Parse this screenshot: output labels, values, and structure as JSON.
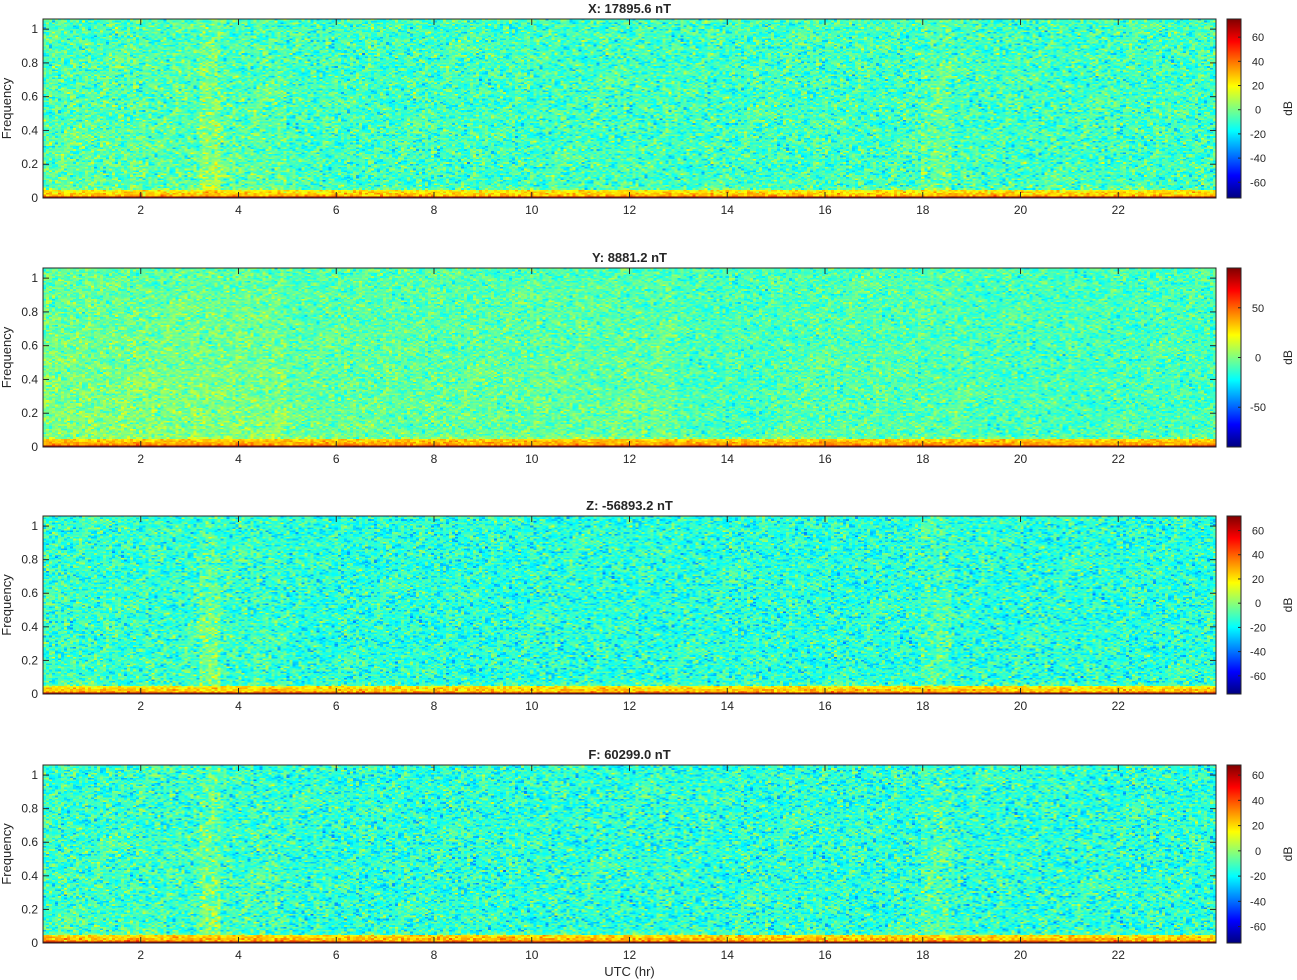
{
  "chart_data": [
    {
      "type": "heatmap",
      "title": "X: 17895.6 nT",
      "ylabel": "Frequency",
      "xlabel": "",
      "xlim": [
        0,
        24
      ],
      "ylim": [
        0,
        1.06
      ],
      "xticks": [
        2,
        4,
        6,
        8,
        10,
        12,
        14,
        16,
        18,
        20,
        22
      ],
      "yticks": [
        0,
        0.2,
        0.4,
        0.6,
        0.8,
        1
      ],
      "colorbar": {
        "label": "dB",
        "clim": [
          -73,
          75
        ],
        "ticks": [
          60,
          40,
          20,
          0,
          -20,
          -40,
          -60
        ]
      },
      "background_db": -8,
      "low_freq_band_db": 30,
      "dc_line_db": 70,
      "enhanced_regions": [
        {
          "x": [
            0,
            5
          ],
          "db_offset": 4
        },
        {
          "x": [
            3.2,
            3.6
          ],
          "db_offset": 10
        },
        {
          "x": [
            18,
            18.6
          ],
          "db_offset": 6
        }
      ]
    },
    {
      "type": "heatmap",
      "title": "Y: 8881.2 nT",
      "ylabel": "Frequency",
      "xlabel": "",
      "xlim": [
        0,
        24
      ],
      "ylim": [
        0,
        1.06
      ],
      "xticks": [
        2,
        4,
        6,
        8,
        10,
        12,
        14,
        16,
        18,
        20,
        22
      ],
      "yticks": [
        0,
        0.2,
        0.4,
        0.6,
        0.8,
        1
      ],
      "colorbar": {
        "label": "dB",
        "clim": [
          -90,
          90
        ],
        "ticks": [
          50,
          0,
          -50
        ]
      },
      "background_db": -10,
      "low_freq_band_db": 40,
      "dc_line_db": 85,
      "enhanced_regions": [
        {
          "x": [
            0,
            5
          ],
          "db_offset": 12
        },
        {
          "x": [
            5,
            13
          ],
          "db_offset": 6
        },
        {
          "x": [
            15,
            19
          ],
          "db_offset": 3
        }
      ]
    },
    {
      "type": "heatmap",
      "title": "Z: -56893.2 nT",
      "ylabel": "Frequency",
      "xlabel": "",
      "xlim": [
        0,
        24
      ],
      "ylim": [
        0,
        1.06
      ],
      "xticks": [
        2,
        4,
        6,
        8,
        10,
        12,
        14,
        16,
        18,
        20,
        22
      ],
      "yticks": [
        0,
        0.2,
        0.4,
        0.6,
        0.8,
        1
      ],
      "colorbar": {
        "label": "dB",
        "clim": [
          -75,
          72
        ],
        "ticks": [
          60,
          40,
          20,
          0,
          -20,
          -40,
          -60
        ]
      },
      "background_db": -14,
      "low_freq_band_db": 28,
      "dc_line_db": 68,
      "enhanced_regions": [
        {
          "x": [
            0,
            5
          ],
          "db_offset": 3
        },
        {
          "x": [
            3.2,
            3.6
          ],
          "db_offset": 10
        },
        {
          "x": [
            18,
            18.6
          ],
          "db_offset": 6
        }
      ]
    },
    {
      "type": "heatmap",
      "title": "F: 60299.0 nT",
      "ylabel": "Frequency",
      "xlabel": "UTC (hr)",
      "xlim": [
        0,
        24
      ],
      "ylim": [
        0,
        1.06
      ],
      "xticks": [
        2,
        4,
        6,
        8,
        10,
        12,
        14,
        16,
        18,
        20,
        22
      ],
      "yticks": [
        0,
        0.2,
        0.4,
        0.6,
        0.8,
        1
      ],
      "colorbar": {
        "label": "dB",
        "clim": [
          -73,
          68
        ],
        "ticks": [
          60,
          40,
          20,
          0,
          -20,
          -40,
          -60
        ]
      },
      "background_db": -14,
      "low_freq_band_db": 28,
      "dc_line_db": 65,
      "enhanced_regions": [
        {
          "x": [
            0,
            5
          ],
          "db_offset": 3
        },
        {
          "x": [
            3.2,
            3.6
          ],
          "db_offset": 10
        },
        {
          "x": [
            18,
            18.6
          ],
          "db_offset": 6
        }
      ]
    }
  ]
}
